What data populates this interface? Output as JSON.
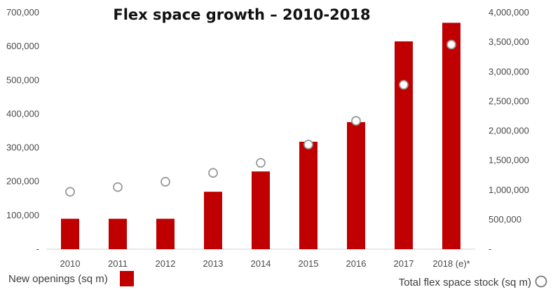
{
  "chart_data": {
    "type": "bar",
    "title": "Flex space growth – 2010-2018",
    "categories": [
      "2010",
      "2011",
      "2012",
      "2013",
      "2014",
      "2015",
      "2016",
      "2017",
      "2018 (e)*"
    ],
    "series": [
      {
        "name": "New openings (sq m)",
        "type": "bar",
        "axis": "left",
        "color": "#c00000",
        "values": [
          90000,
          90000,
          90000,
          170000,
          230000,
          318000,
          376000,
          615000,
          670000
        ]
      },
      {
        "name": "Total flex space stock (sq m)",
        "type": "scatter",
        "axis": "right",
        "marker": "hollow-circle",
        "color": "#9a9a9a",
        "values": [
          970000,
          1050000,
          1140000,
          1290000,
          1460000,
          1770000,
          2170000,
          2780000,
          3460000
        ]
      }
    ],
    "y_left": {
      "ylim": [
        0,
        700000
      ],
      "ticks": [
        {
          "value": 0,
          "label": "-"
        },
        {
          "value": 100000,
          "label": "100,000"
        },
        {
          "value": 200000,
          "label": "200,000"
        },
        {
          "value": 300000,
          "label": "300,000"
        },
        {
          "value": 400000,
          "label": "400,000"
        },
        {
          "value": 500000,
          "label": "500,000"
        },
        {
          "value": 600000,
          "label": "600,000"
        },
        {
          "value": 700000,
          "label": "700,000"
        }
      ]
    },
    "y_right": {
      "ylim": [
        0,
        4000000
      ],
      "ticks": [
        {
          "value": 0,
          "label": "-"
        },
        {
          "value": 500000,
          "label": "500,000"
        },
        {
          "value": 1000000,
          "label": "1,000,000"
        },
        {
          "value": 1500000,
          "label": "1,500,000"
        },
        {
          "value": 2000000,
          "label": "2,000,000"
        },
        {
          "value": 2500000,
          "label": "2,500,000"
        },
        {
          "value": 3000000,
          "label": "3,000,000"
        },
        {
          "value": 3500000,
          "label": "3,500,000"
        },
        {
          "value": 4000000,
          "label": "4,000,000"
        }
      ]
    },
    "grid": false,
    "legend": {
      "placement": "bottom"
    }
  }
}
